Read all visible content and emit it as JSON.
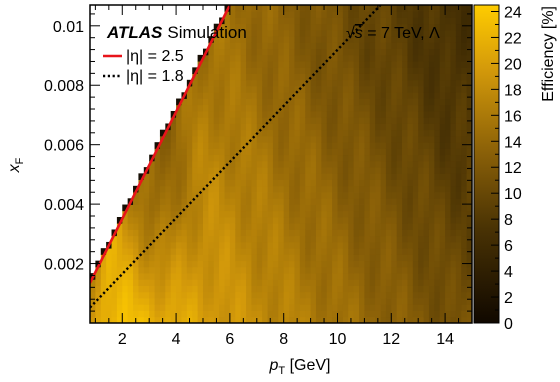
{
  "chart_data": {
    "type": "heatmap",
    "title": "",
    "experiment": {
      "name": "ATLAS",
      "suffix": "Simulation"
    },
    "energy_label": {
      "sqrt": "√",
      "s_part": "s",
      "rest": " = 7 TeV, Λ"
    },
    "xlabel": {
      "main": "p",
      "sub": "T",
      "unit": " [GeV]"
    },
    "ylabel": {
      "main": "x",
      "sub": "F"
    },
    "colorbar_label": "Efficiency [%]",
    "xlim": [
      0.8,
      15.0
    ],
    "ylim": [
      0.0,
      0.0107
    ],
    "zlim": [
      0,
      24.5
    ],
    "x_ticks": [
      2,
      4,
      6,
      8,
      10,
      12,
      14
    ],
    "x_tick_labels": [
      "2",
      "4",
      "6",
      "8",
      "10",
      "12",
      "14"
    ],
    "y_ticks": [
      0.002,
      0.004,
      0.006,
      0.008,
      0.01
    ],
    "y_tick_labels": [
      "0.002",
      "0.004",
      "0.006",
      "0.008",
      "0.01"
    ],
    "z_ticks": [
      0,
      2,
      4,
      6,
      8,
      10,
      12,
      14,
      16,
      18,
      20,
      22,
      24
    ],
    "z_tick_labels": [
      "0",
      "2",
      "4",
      "6",
      "8",
      "10",
      "12",
      "14",
      "16",
      "18",
      "20",
      "22",
      "24"
    ],
    "binning": {
      "nx": 71,
      "ny": 51
    },
    "acceptance_boundary": "|η| = 2.5",
    "efficiency_model": {
      "peak_percent": 24,
      "peak_at": {
        "pt": 3.5,
        "xF": 0.0005
      },
      "at_boundary_percent": 17,
      "at_high_pt_low_xF_percent": 9,
      "at_high_pt_high_xF_percent": 11
    },
    "legend": [
      {
        "label": "|η| = 2.5",
        "style": "solid",
        "color": "#e8141a"
      },
      {
        "label": "|η| = 1.8",
        "style": "dotted",
        "color": "#000000"
      }
    ],
    "lines": [
      {
        "name": "|η| = 2.5",
        "x": [
          0.8,
          6.0
        ],
        "y": [
          0.00135,
          0.0107
        ]
      },
      {
        "name": "|η| = 1.8",
        "x": [
          0.8,
          11.6
        ],
        "y": [
          0.00052,
          0.0107
        ]
      }
    ],
    "colors": {
      "low": "#100800",
      "mid": "#6e4c08",
      "high": "#e8a80a",
      "top": "#ffcc00"
    }
  }
}
